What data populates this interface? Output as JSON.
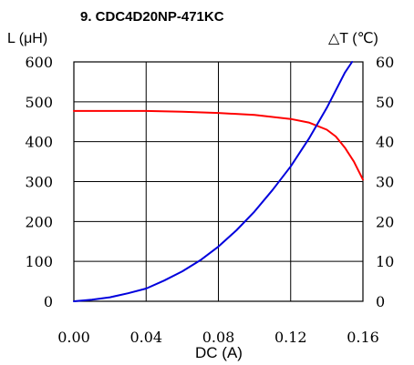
{
  "chart_data": {
    "type": "line",
    "title": "9. CDC4D20NP-471KC",
    "xlabel": "DC (A)",
    "ylabel_left": "L (μH)",
    "ylabel_right": "△T (℃)",
    "xlim": [
      0,
      0.16
    ],
    "ylim_left": [
      0,
      600
    ],
    "ylim_right": [
      0,
      60
    ],
    "x_ticks": [
      "0.00",
      "0.04",
      "0.08",
      "0.12",
      "0.16"
    ],
    "y_ticks_left": [
      "0",
      "100",
      "200",
      "300",
      "400",
      "500",
      "600"
    ],
    "y_ticks_right": [
      "0",
      "10",
      "20",
      "30",
      "40",
      "50",
      "60"
    ],
    "grid": true,
    "series": [
      {
        "axis": "left",
        "color": "#ff0000",
        "x": [
          0,
          0.02,
          0.04,
          0.06,
          0.08,
          0.1,
          0.12,
          0.13,
          0.14,
          0.145,
          0.15,
          0.155,
          0.16
        ],
        "y": [
          477,
          477,
          477,
          475,
          472,
          467,
          457,
          448,
          430,
          413,
          385,
          350,
          305
        ]
      },
      {
        "axis": "right",
        "color": "#0000dd",
        "x": [
          0,
          0.01,
          0.02,
          0.03,
          0.04,
          0.05,
          0.06,
          0.07,
          0.08,
          0.09,
          0.1,
          0.11,
          0.12,
          0.13,
          0.14,
          0.15,
          0.154
        ],
        "y": [
          0,
          0.4,
          1.0,
          2.0,
          3.2,
          5.2,
          7.5,
          10.3,
          13.7,
          17.8,
          22.5,
          27.9,
          33.8,
          40.7,
          48.5,
          57.3,
          60
        ]
      }
    ]
  }
}
